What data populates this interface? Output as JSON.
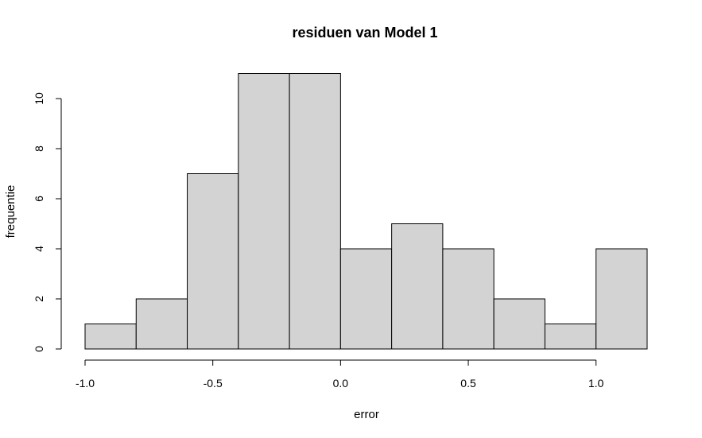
{
  "chart_data": {
    "type": "bar",
    "title": "residuen van Model 1",
    "xlabel": "error",
    "ylabel": "frequentie",
    "bins": [
      {
        "x0": -1.0,
        "x1": -0.8,
        "count": 1
      },
      {
        "x0": -0.8,
        "x1": -0.6,
        "count": 2
      },
      {
        "x0": -0.6,
        "x1": -0.4,
        "count": 7
      },
      {
        "x0": -0.4,
        "x1": -0.2,
        "count": 11
      },
      {
        "x0": -0.2,
        "x1": 0.0,
        "count": 11
      },
      {
        "x0": 0.0,
        "x1": 0.2,
        "count": 4
      },
      {
        "x0": 0.2,
        "x1": 0.4,
        "count": 5
      },
      {
        "x0": 0.4,
        "x1": 0.6,
        "count": 4
      },
      {
        "x0": 0.6,
        "x1": 0.8,
        "count": 2
      },
      {
        "x0": 0.8,
        "x1": 1.0,
        "count": 1
      },
      {
        "x0": 1.0,
        "x1": 1.2,
        "count": 4
      }
    ],
    "xticks": [
      -1.0,
      -0.5,
      0.0,
      0.5,
      1.0
    ],
    "xtick_labels": [
      "-1.0",
      "-0.5",
      "0.0",
      "0.5",
      "1.0"
    ],
    "yticks": [
      0,
      2,
      4,
      6,
      8,
      10
    ],
    "ytick_labels": [
      "0",
      "2",
      "4",
      "6",
      "8",
      "10"
    ],
    "xlim": [
      -1.0,
      1.2
    ],
    "ylim": [
      0,
      11
    ],
    "grid": false,
    "bar_color": "#d3d3d3",
    "edge_color": "#000000"
  }
}
